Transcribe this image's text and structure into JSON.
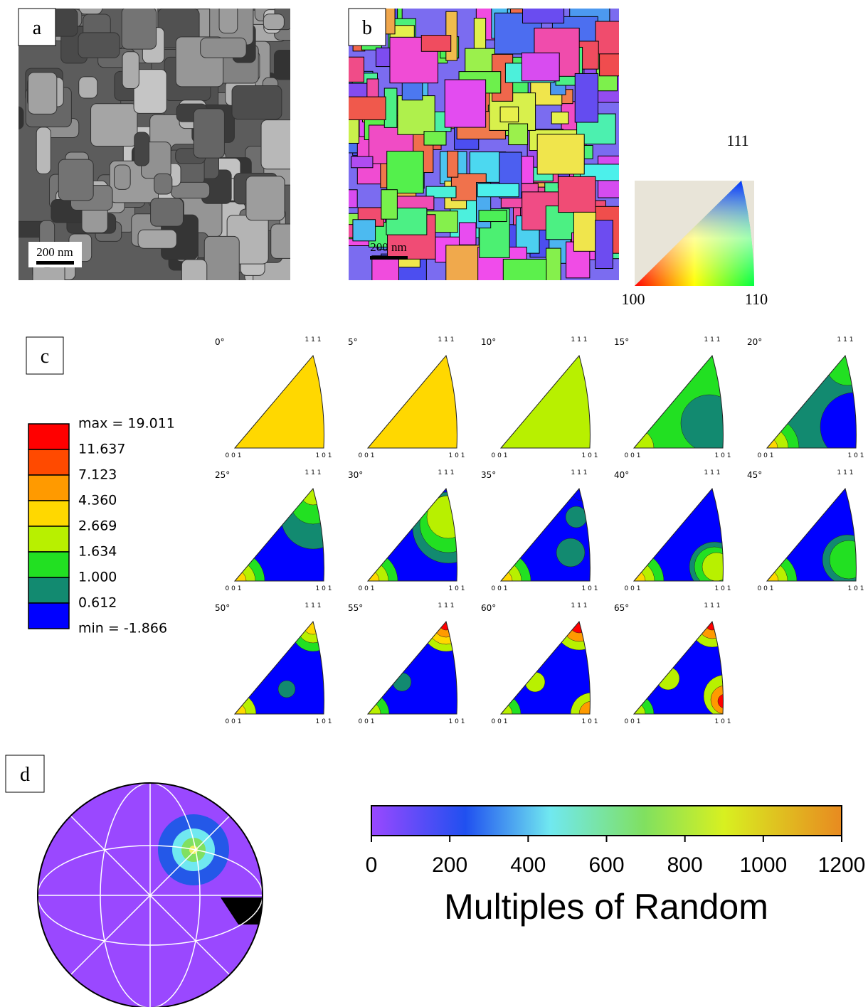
{
  "panels": {
    "a": {
      "label": "a",
      "scale_bar": "200 nm"
    },
    "b": {
      "label": "b",
      "scale_bar": "200 nm"
    },
    "ipf_key": {
      "top": "111",
      "left": "100",
      "right": "110"
    },
    "c": {
      "label": "c",
      "legend": {
        "labels": [
          "max = 19.011",
          "11.637",
          "7.123",
          "4.360",
          "2.669",
          "1.634",
          "1.000",
          "0.612",
          "min = -1.866"
        ],
        "colors": [
          "#ff0000",
          "#ff4a00",
          "#ff9a00",
          "#ffd800",
          "#b8f000",
          "#22e022",
          "#128a70",
          "#0000ff"
        ]
      },
      "angles": [
        "0°",
        "5°",
        "10°",
        "15°",
        "20°",
        "25°",
        "30°",
        "35°",
        "40°",
        "45°",
        "50°",
        "55°",
        "60°",
        "65°"
      ],
      "corners": {
        "top": "1 1 1",
        "left": "0 0 1",
        "right": "1 0 1"
      }
    },
    "d": {
      "label": "d",
      "colorbar": {
        "lim": [
          0,
          1200
        ],
        "ticks": [
          0,
          200,
          400,
          600,
          800,
          1000,
          1200
        ],
        "title": "Multiples of Random"
      }
    }
  }
}
